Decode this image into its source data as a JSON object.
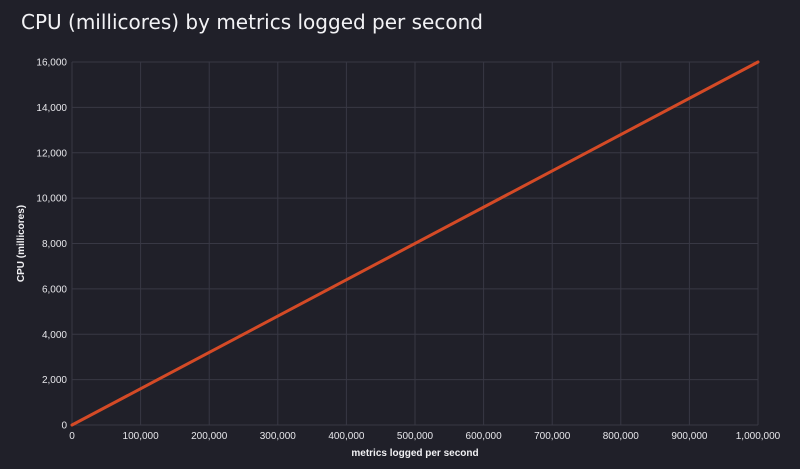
{
  "chart_data": {
    "type": "line",
    "title": "CPU (millicores) by metrics logged per second",
    "xlabel": "metrics logged per second",
    "ylabel": "CPU (millicores)",
    "xlim": [
      0,
      1000000
    ],
    "ylim": [
      0,
      16000
    ],
    "x_ticks": [
      0,
      100000,
      200000,
      300000,
      400000,
      500000,
      600000,
      700000,
      800000,
      900000,
      1000000
    ],
    "x_tick_labels": [
      "0",
      "100,000",
      "200,000",
      "300,000",
      "400,000",
      "500,000",
      "600,000",
      "700,000",
      "800,000",
      "900,000",
      "1,000,000"
    ],
    "y_ticks": [
      0,
      2000,
      4000,
      6000,
      8000,
      10000,
      12000,
      14000,
      16000
    ],
    "y_tick_labels": [
      "0",
      "2,000",
      "4,000",
      "6,000",
      "8,000",
      "10,000",
      "12,000",
      "14,000",
      "16,000"
    ],
    "grid": true,
    "legend": "none",
    "series": [
      {
        "color": "#d44a26",
        "x": [
          0,
          1000000
        ],
        "y": [
          0,
          16000
        ]
      }
    ]
  },
  "colors": {
    "background": "#202029",
    "grid": "#383844",
    "text": "#e6e6ea",
    "line": "#d44a26"
  }
}
